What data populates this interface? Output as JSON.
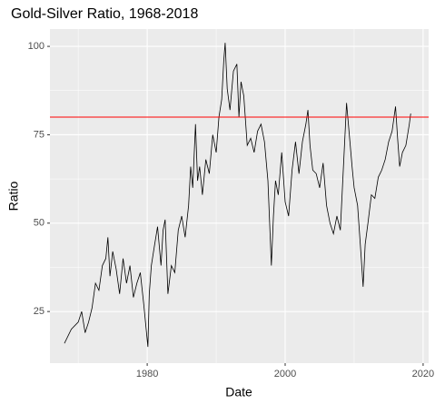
{
  "chart_data": {
    "type": "line",
    "title": "Gold-Silver Ratio, 1968-2018",
    "x_label": "Date",
    "y_label": "Ratio",
    "x": [
      1968,
      1969,
      1970,
      1970.5,
      1971,
      1971.5,
      1972,
      1972.5,
      1973,
      1973.5,
      1974,
      1974.3,
      1974.6,
      1975,
      1975.5,
      1976,
      1976.5,
      1977,
      1977.5,
      1978,
      1978.5,
      1979,
      1979.5,
      1980,
      1980.1,
      1980.3,
      1980.6,
      1981,
      1981.5,
      1982,
      1982.3,
      1982.6,
      1983,
      1983.5,
      1984,
      1984.5,
      1985,
      1985.5,
      1986,
      1986.3,
      1986.6,
      1987,
      1987.3,
      1987.6,
      1988,
      1988.5,
      1989,
      1989.5,
      1990,
      1990.4,
      1990.8,
      1991.1,
      1991.3,
      1991.6,
      1992,
      1992.5,
      1993,
      1993.3,
      1993.6,
      1994,
      1994.5,
      1995,
      1995.5,
      1996,
      1996.5,
      1997,
      1997.5,
      1998,
      1998.3,
      1998.6,
      1999,
      1999.5,
      2000,
      2000.5,
      2001,
      2001.5,
      2002,
      2002.5,
      2003,
      2003.3,
      2003.6,
      2004,
      2004.5,
      2005,
      2005.5,
      2006,
      2006.5,
      2007,
      2007.5,
      2008,
      2008.5,
      2008.9,
      2009.3,
      2009.7,
      2010,
      2010.5,
      2011,
      2011.3,
      2011.6,
      2012,
      2012.5,
      2013,
      2013.5,
      2014,
      2014.5,
      2015,
      2015.5,
      2016,
      2016.3,
      2016.6,
      2017,
      2017.5,
      2018,
      2018.2
    ],
    "series": [
      {
        "name": "Ratio",
        "color": "#000000",
        "values": [
          16,
          20,
          22,
          25,
          19,
          22,
          26,
          33,
          31,
          38,
          40,
          46,
          35,
          42,
          37,
          30,
          40,
          33,
          38,
          29,
          33,
          36,
          27,
          17,
          15,
          30,
          38,
          43,
          49,
          38,
          48,
          51,
          30,
          38,
          36,
          48,
          52,
          46,
          55,
          66,
          60,
          78,
          62,
          66,
          58,
          68,
          64,
          75,
          70,
          80,
          85,
          96,
          101,
          88,
          82,
          93,
          95,
          80,
          90,
          86,
          72,
          74,
          70,
          76,
          78,
          73,
          62,
          38,
          52,
          62,
          58,
          70,
          56,
          52,
          65,
          73,
          64,
          73,
          78,
          82,
          72,
          65,
          64,
          60,
          67,
          55,
          50,
          47,
          52,
          48,
          68,
          84,
          75,
          66,
          60,
          55,
          41,
          32,
          44,
          50,
          58,
          57,
          63,
          65,
          68,
          73,
          76,
          83,
          74,
          66,
          70,
          72,
          78,
          81
        ]
      }
    ],
    "hline": {
      "value": 80,
      "color": "#ff0000"
    },
    "xlim": [
      1965.9,
      2020.8
    ],
    "ylim": [
      10.4,
      104.9
    ],
    "xticks": [
      1980,
      2000,
      2020
    ],
    "yticks": [
      25,
      50,
      75,
      100
    ],
    "x_minor": [
      1970,
      1990,
      2010
    ],
    "y_minor": [
      37.5,
      62.5,
      87.5
    ],
    "grid": true
  }
}
